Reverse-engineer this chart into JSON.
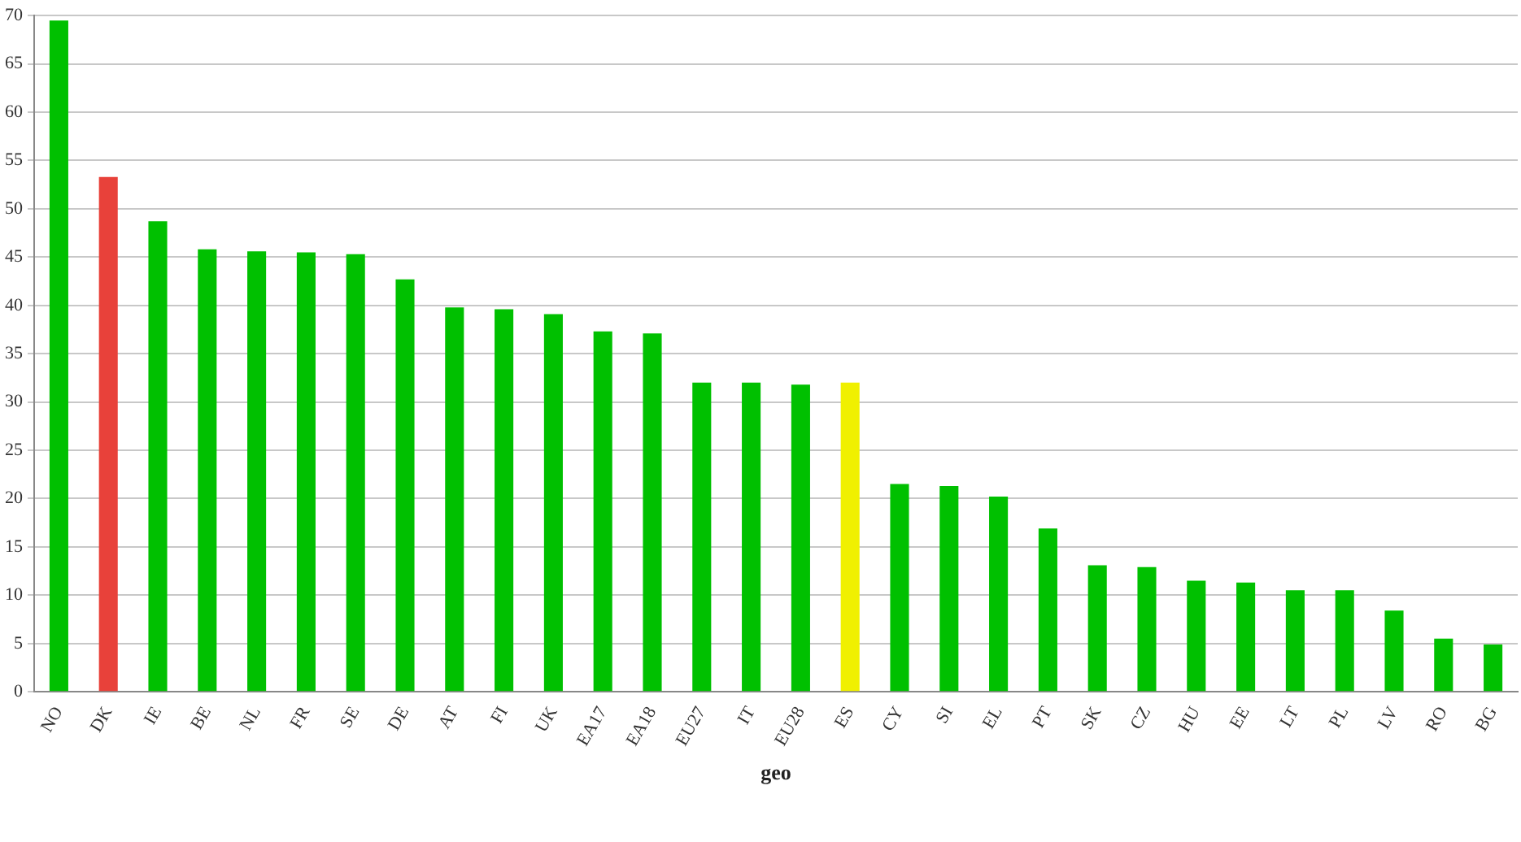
{
  "chart_data": {
    "type": "bar",
    "xlabel": "geo",
    "categories": [
      "NO",
      "DK",
      "IE",
      "BE",
      "NL",
      "FR",
      "SE",
      "DE",
      "AT",
      "FI",
      "UK",
      "EA17",
      "EA18",
      "EU27",
      "IT",
      "EU28",
      "ES",
      "CY",
      "SI",
      "EL",
      "PT",
      "SK",
      "CZ",
      "HU",
      "EE",
      "LT",
      "PL",
      "LV",
      "RO",
      "BG"
    ],
    "values": [
      69.5,
      53.3,
      48.7,
      45.8,
      45.6,
      45.5,
      45.3,
      42.7,
      39.8,
      39.6,
      39.1,
      37.3,
      37.1,
      32.0,
      32.0,
      31.8,
      32.0,
      21.5,
      21.3,
      20.2,
      16.9,
      13.1,
      12.9,
      11.5,
      11.3,
      10.5,
      10.5,
      8.4,
      5.5,
      4.9
    ],
    "colors": [
      "#00c000",
      "#e8413a",
      "#00c000",
      "#00c000",
      "#00c000",
      "#00c000",
      "#00c000",
      "#00c000",
      "#00c000",
      "#00c000",
      "#00c000",
      "#00c000",
      "#00c000",
      "#00c000",
      "#00c000",
      "#00c000",
      "#f0f000",
      "#00c000",
      "#00c000",
      "#00c000",
      "#00c000",
      "#00c000",
      "#00c000",
      "#00c000",
      "#00c000",
      "#00c000",
      "#00c000",
      "#00c000",
      "#00c000",
      "#00c000"
    ],
    "ylim": [
      0,
      70
    ],
    "yticks": [
      0,
      5,
      10,
      15,
      20,
      25,
      30,
      35,
      40,
      45,
      50,
      55,
      60,
      65,
      70
    ],
    "grid": "y",
    "legend": false
  }
}
